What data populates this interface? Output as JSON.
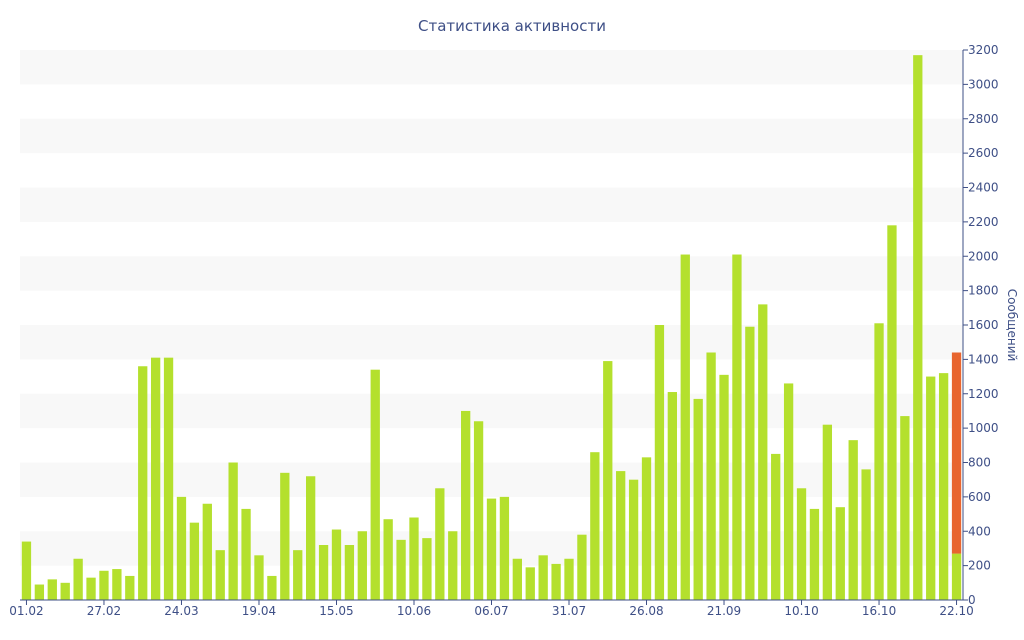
{
  "chart_data": {
    "type": "bar",
    "title": "Статистика активности",
    "ylabel": "Сообщений",
    "xlabel": "",
    "ylim": [
      0,
      3200
    ],
    "y_ticks": [
      0,
      200,
      400,
      600,
      800,
      1000,
      1200,
      1400,
      1600,
      1800,
      2000,
      2200,
      2400,
      2600,
      2800,
      3000,
      3200
    ],
    "y_axis_position": "right",
    "grid": "alternating horizontal bands",
    "legend": "none",
    "x_tick_labels": [
      {
        "index": 0,
        "label": "01.02"
      },
      {
        "index": 6,
        "label": "27.02"
      },
      {
        "index": 12,
        "label": "24.03"
      },
      {
        "index": 18,
        "label": "19.04"
      },
      {
        "index": 24,
        "label": "15.05"
      },
      {
        "index": 30,
        "label": "10.06"
      },
      {
        "index": 36,
        "label": "06.07"
      },
      {
        "index": 42,
        "label": "31.07"
      },
      {
        "index": 48,
        "label": "26.08"
      },
      {
        "index": 54,
        "label": "21.09"
      },
      {
        "index": 60,
        "label": "10.10"
      },
      {
        "index": 66,
        "label": "16.10"
      },
      {
        "index": 72,
        "label": "22.10"
      }
    ],
    "values": [
      340,
      90,
      120,
      100,
      240,
      130,
      170,
      180,
      140,
      1360,
      1410,
      1410,
      600,
      450,
      560,
      290,
      800,
      530,
      260,
      140,
      740,
      290,
      720,
      320,
      410,
      320,
      400,
      1340,
      470,
      350,
      480,
      360,
      650,
      400,
      1100,
      1040,
      590,
      600,
      240,
      190,
      260,
      210,
      240,
      380,
      860,
      1390,
      750,
      700,
      830,
      1600,
      1210,
      2010,
      1170,
      1440,
      1310,
      2010,
      1590,
      1720,
      850,
      1260,
      650,
      530,
      1020,
      540,
      930,
      760,
      1610,
      2180,
      1070,
      3170,
      1300,
      1320,
      1440
    ],
    "highlight": {
      "index": 72,
      "lower_value": 270,
      "color": "#e8652f"
    },
    "colors": {
      "bar": "#b4e02d",
      "band": "#f8f8f8",
      "axis": "#3e4f86"
    }
  }
}
